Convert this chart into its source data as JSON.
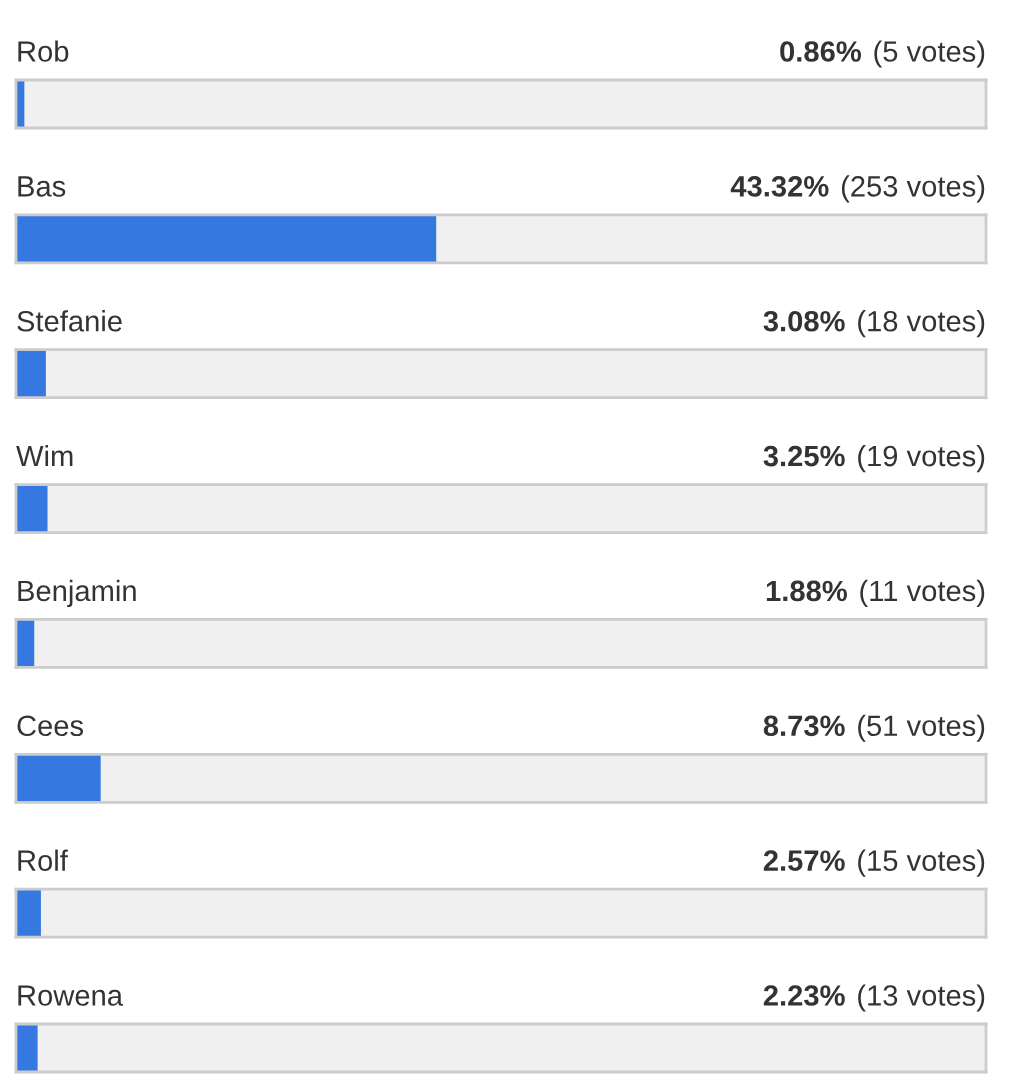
{
  "chart_data": {
    "type": "bar",
    "orientation": "horizontal",
    "categories": [
      "Rob",
      "Bas",
      "Stefanie",
      "Wim",
      "Benjamin",
      "Cees",
      "Rolf",
      "Rowena"
    ],
    "values": [
      0.86,
      43.32,
      3.08,
      3.25,
      1.88,
      8.73,
      2.57,
      2.23
    ],
    "value_labels": [
      "0.86% (5 votes)",
      "43.32% (253 votes)",
      "3.08% (18 votes)",
      "3.25% (19 votes)",
      "1.88% (11 votes)",
      "8.73% (51 votes)",
      "2.57% (15 votes)",
      "2.23% (13 votes)"
    ],
    "color": "#3478e0",
    "xlim": [
      0,
      100
    ],
    "tick_labels": "y"
  }
}
